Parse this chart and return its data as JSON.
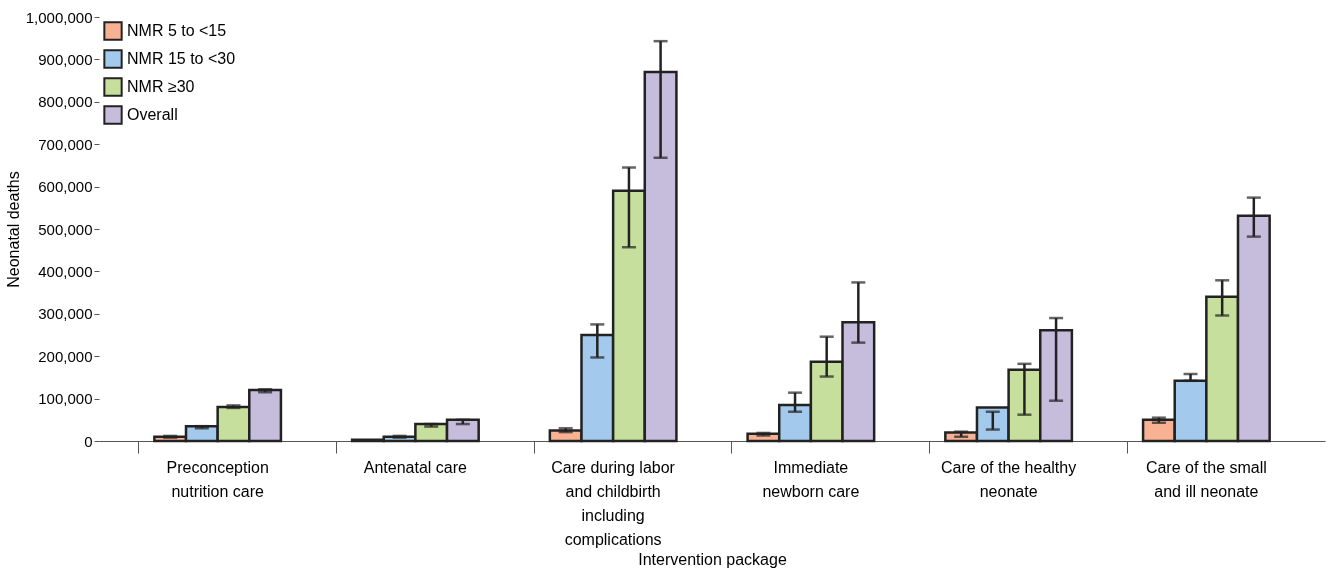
{
  "chart_data": {
    "type": "bar",
    "xlabel": "Intervention package",
    "ylabel": "Neonatal deaths",
    "categories": [
      "Preconception\nnutrition care",
      "Antenatal care",
      "Care during labor\nand childbirth\nincluding\ncomplications",
      "Immediate\nnewborn care",
      "Care of the healthy\nneonate",
      "Care of the small\nand ill neonate"
    ],
    "series": [
      {
        "name": "NMR 5 to <15",
        "color": "#f8b193",
        "values": [
          10000,
          3000,
          25000,
          17000,
          20000,
          50000
        ],
        "errors": [
          [
            8000,
            12000
          ],
          null,
          [
            21000,
            30000
          ],
          [
            13000,
            19000
          ],
          [
            10000,
            22000
          ],
          [
            43000,
            55000
          ]
        ]
      },
      {
        "name": "NMR 15 to <30",
        "color": "#a3c9ec",
        "values": [
          35000,
          10000,
          250000,
          85000,
          79000,
          142000
        ],
        "errors": [
          [
            30000,
            35000
          ],
          [
            8000,
            12000
          ],
          [
            197000,
            275000
          ],
          [
            69000,
            114000
          ],
          [
            27000,
            69000
          ],
          [
            142000,
            158000
          ]
        ]
      },
      {
        "name": "NMR ≥30",
        "color": "#c6df9c",
        "values": [
          80000,
          40000,
          590000,
          187000,
          168000,
          340000
        ],
        "errors": [
          [
            78000,
            84000
          ],
          [
            34000,
            40000
          ],
          [
            457000,
            645000
          ],
          [
            152000,
            246000
          ],
          [
            62000,
            182000
          ],
          [
            296000,
            379000
          ]
        ]
      },
      {
        "name": "Overall",
        "color": "#c6bcdc",
        "values": [
          120000,
          50000,
          870000,
          280000,
          261000,
          531000
        ],
        "errors": [
          [
            115000,
            122000
          ],
          [
            40000,
            50000
          ],
          [
            668000,
            943000
          ],
          [
            232000,
            374000
          ],
          [
            95000,
            290000
          ],
          [
            482000,
            574000
          ]
        ]
      }
    ],
    "ylim": [
      0,
      1000000
    ],
    "yticks": [
      0,
      {
        "value": 100000,
        "label": "100,000"
      },
      {
        "value": 200000,
        "label": "200,000"
      },
      {
        "value": 300000,
        "label": "300,000"
      },
      {
        "value": 400000,
        "label": "400,000"
      },
      {
        "value": 500000,
        "label": "500,000"
      },
      {
        "value": 600000,
        "label": "600,000"
      },
      {
        "value": 700000,
        "label": "700,000"
      },
      {
        "value": 800000,
        "label": "800,000"
      },
      {
        "value": 900000,
        "label": "900,000"
      },
      {
        "value": 1000000,
        "label": "1,000,000"
      }
    ],
    "grid": false,
    "legend": "top left"
  }
}
